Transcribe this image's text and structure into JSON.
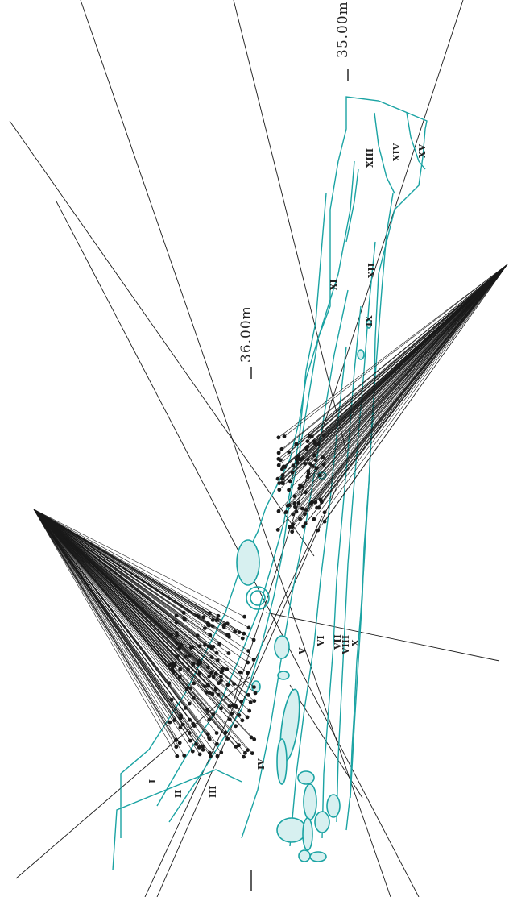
{
  "scale_labels": [
    "35.00m",
    "36.00m"
  ],
  "layer_labels": [
    "I",
    "II",
    "III",
    "IV",
    "V",
    "VI",
    "VII",
    "VIII",
    "X",
    "IX",
    "XI",
    "XII",
    "XIII",
    "XIV",
    "XV"
  ],
  "colors": {
    "teal": "#1aa3a3",
    "ink": "#1a1a1a"
  }
}
